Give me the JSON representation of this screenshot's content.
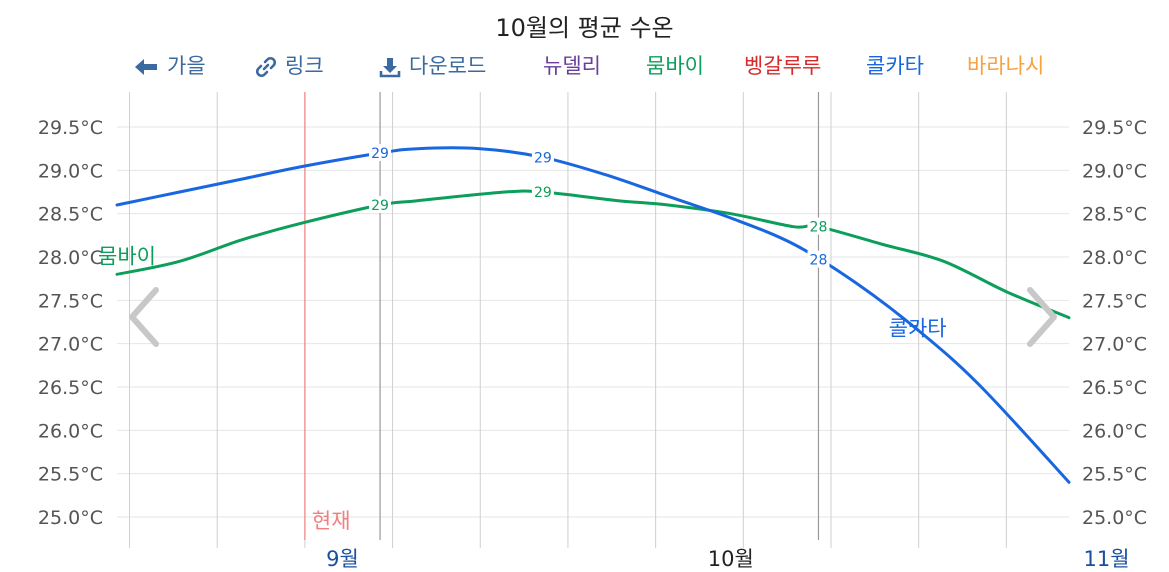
{
  "header": {
    "title": "10월의 평균 수온"
  },
  "toolbar": {
    "back_label": "가을",
    "link_label": "링크",
    "download_label": "다운로드"
  },
  "chart_data": {
    "type": "line",
    "title": "10월의 평균 수온",
    "y_unit": "°C",
    "ylim": [
      25.0,
      29.5
    ],
    "y_ticks": [
      "25.0°C",
      "25.5°C",
      "26.0°C",
      "26.5°C",
      "27.0°C",
      "27.5°C",
      "28.0°C",
      "28.5°C",
      "29.0°C",
      "29.5°C"
    ],
    "x_ticks": [
      "9월",
      "10월",
      "11월"
    ],
    "x_range": [
      "2025-08-28",
      "2025-11-12"
    ],
    "current_label": "현재",
    "current_date": "2025-09-12",
    "highlight_range": [
      "2025-09-18",
      "2025-10-23"
    ],
    "grid": true,
    "legend_placement": "top",
    "series": [
      {
        "name": "뉴델리",
        "color": "#6a3d9a",
        "points": []
      },
      {
        "name": "뭄바이",
        "color": "#0c9e5a",
        "points": [
          [
            "2025-08-28",
            27.8
          ],
          [
            "2025-09-02",
            27.95
          ],
          [
            "2025-09-07",
            28.2
          ],
          [
            "2025-09-12",
            28.4
          ],
          [
            "2025-09-18",
            28.6
          ],
          [
            "2025-09-21",
            28.65
          ],
          [
            "2025-09-28",
            28.75
          ],
          [
            "2025-10-01",
            28.75
          ],
          [
            "2025-10-07",
            28.65
          ],
          [
            "2025-10-11",
            28.6
          ],
          [
            "2025-10-16",
            28.5
          ],
          [
            "2025-10-21",
            28.35
          ],
          [
            "2025-10-23",
            28.35
          ],
          [
            "2025-10-28",
            28.15
          ],
          [
            "2025-11-02",
            27.95
          ],
          [
            "2025-11-07",
            27.6
          ],
          [
            "2025-11-12",
            27.3
          ]
        ],
        "data_labels": [
          [
            "2025-09-18",
            "29"
          ],
          [
            "2025-10-01",
            "29"
          ],
          [
            "2025-10-23",
            "28"
          ]
        ]
      },
      {
        "name": "벵갈루루",
        "color": "#d42a2a",
        "points": []
      },
      {
        "name": "콜카타",
        "color": "#1967e0",
        "points": [
          [
            "2025-08-28",
            28.6
          ],
          [
            "2025-09-02",
            28.75
          ],
          [
            "2025-09-07",
            28.9
          ],
          [
            "2025-09-12",
            29.05
          ],
          [
            "2025-09-18",
            29.2
          ],
          [
            "2025-09-21",
            29.25
          ],
          [
            "2025-09-26",
            29.25
          ],
          [
            "2025-10-01",
            29.15
          ],
          [
            "2025-10-06",
            28.95
          ],
          [
            "2025-10-11",
            28.7
          ],
          [
            "2025-10-16",
            28.45
          ],
          [
            "2025-10-21",
            28.15
          ],
          [
            "2025-10-26",
            27.7
          ],
          [
            "2025-10-31",
            27.15
          ],
          [
            "2025-11-05",
            26.5
          ],
          [
            "2025-11-12",
            25.4
          ]
        ],
        "data_labels": [
          [
            "2025-09-18",
            "29"
          ],
          [
            "2025-10-01",
            "29"
          ],
          [
            "2025-10-23",
            "28"
          ]
        ]
      },
      {
        "name": "바라나시",
        "color": "#f7a23e",
        "points": []
      }
    ],
    "series_end_labels": [
      {
        "name": "뭄바이",
        "color": "#0c9e5a",
        "position": "left"
      },
      {
        "name": "콜카타",
        "color": "#1967e0",
        "position": "right"
      }
    ]
  },
  "icons": {
    "back": "arrow-left-icon",
    "link": "link-icon",
    "download": "download-icon",
    "prev": "chevron-left-icon",
    "next": "chevron-right-icon"
  },
  "colors": {
    "toolbar_icon": "#3b6aa0",
    "grid": "#e6e6e6",
    "vgrid": "#cfcfcf",
    "highlight": "#999999",
    "current": "#f08080",
    "axis_tick_blue": "#1a4fa0",
    "axis_tick_current": "#222222"
  }
}
